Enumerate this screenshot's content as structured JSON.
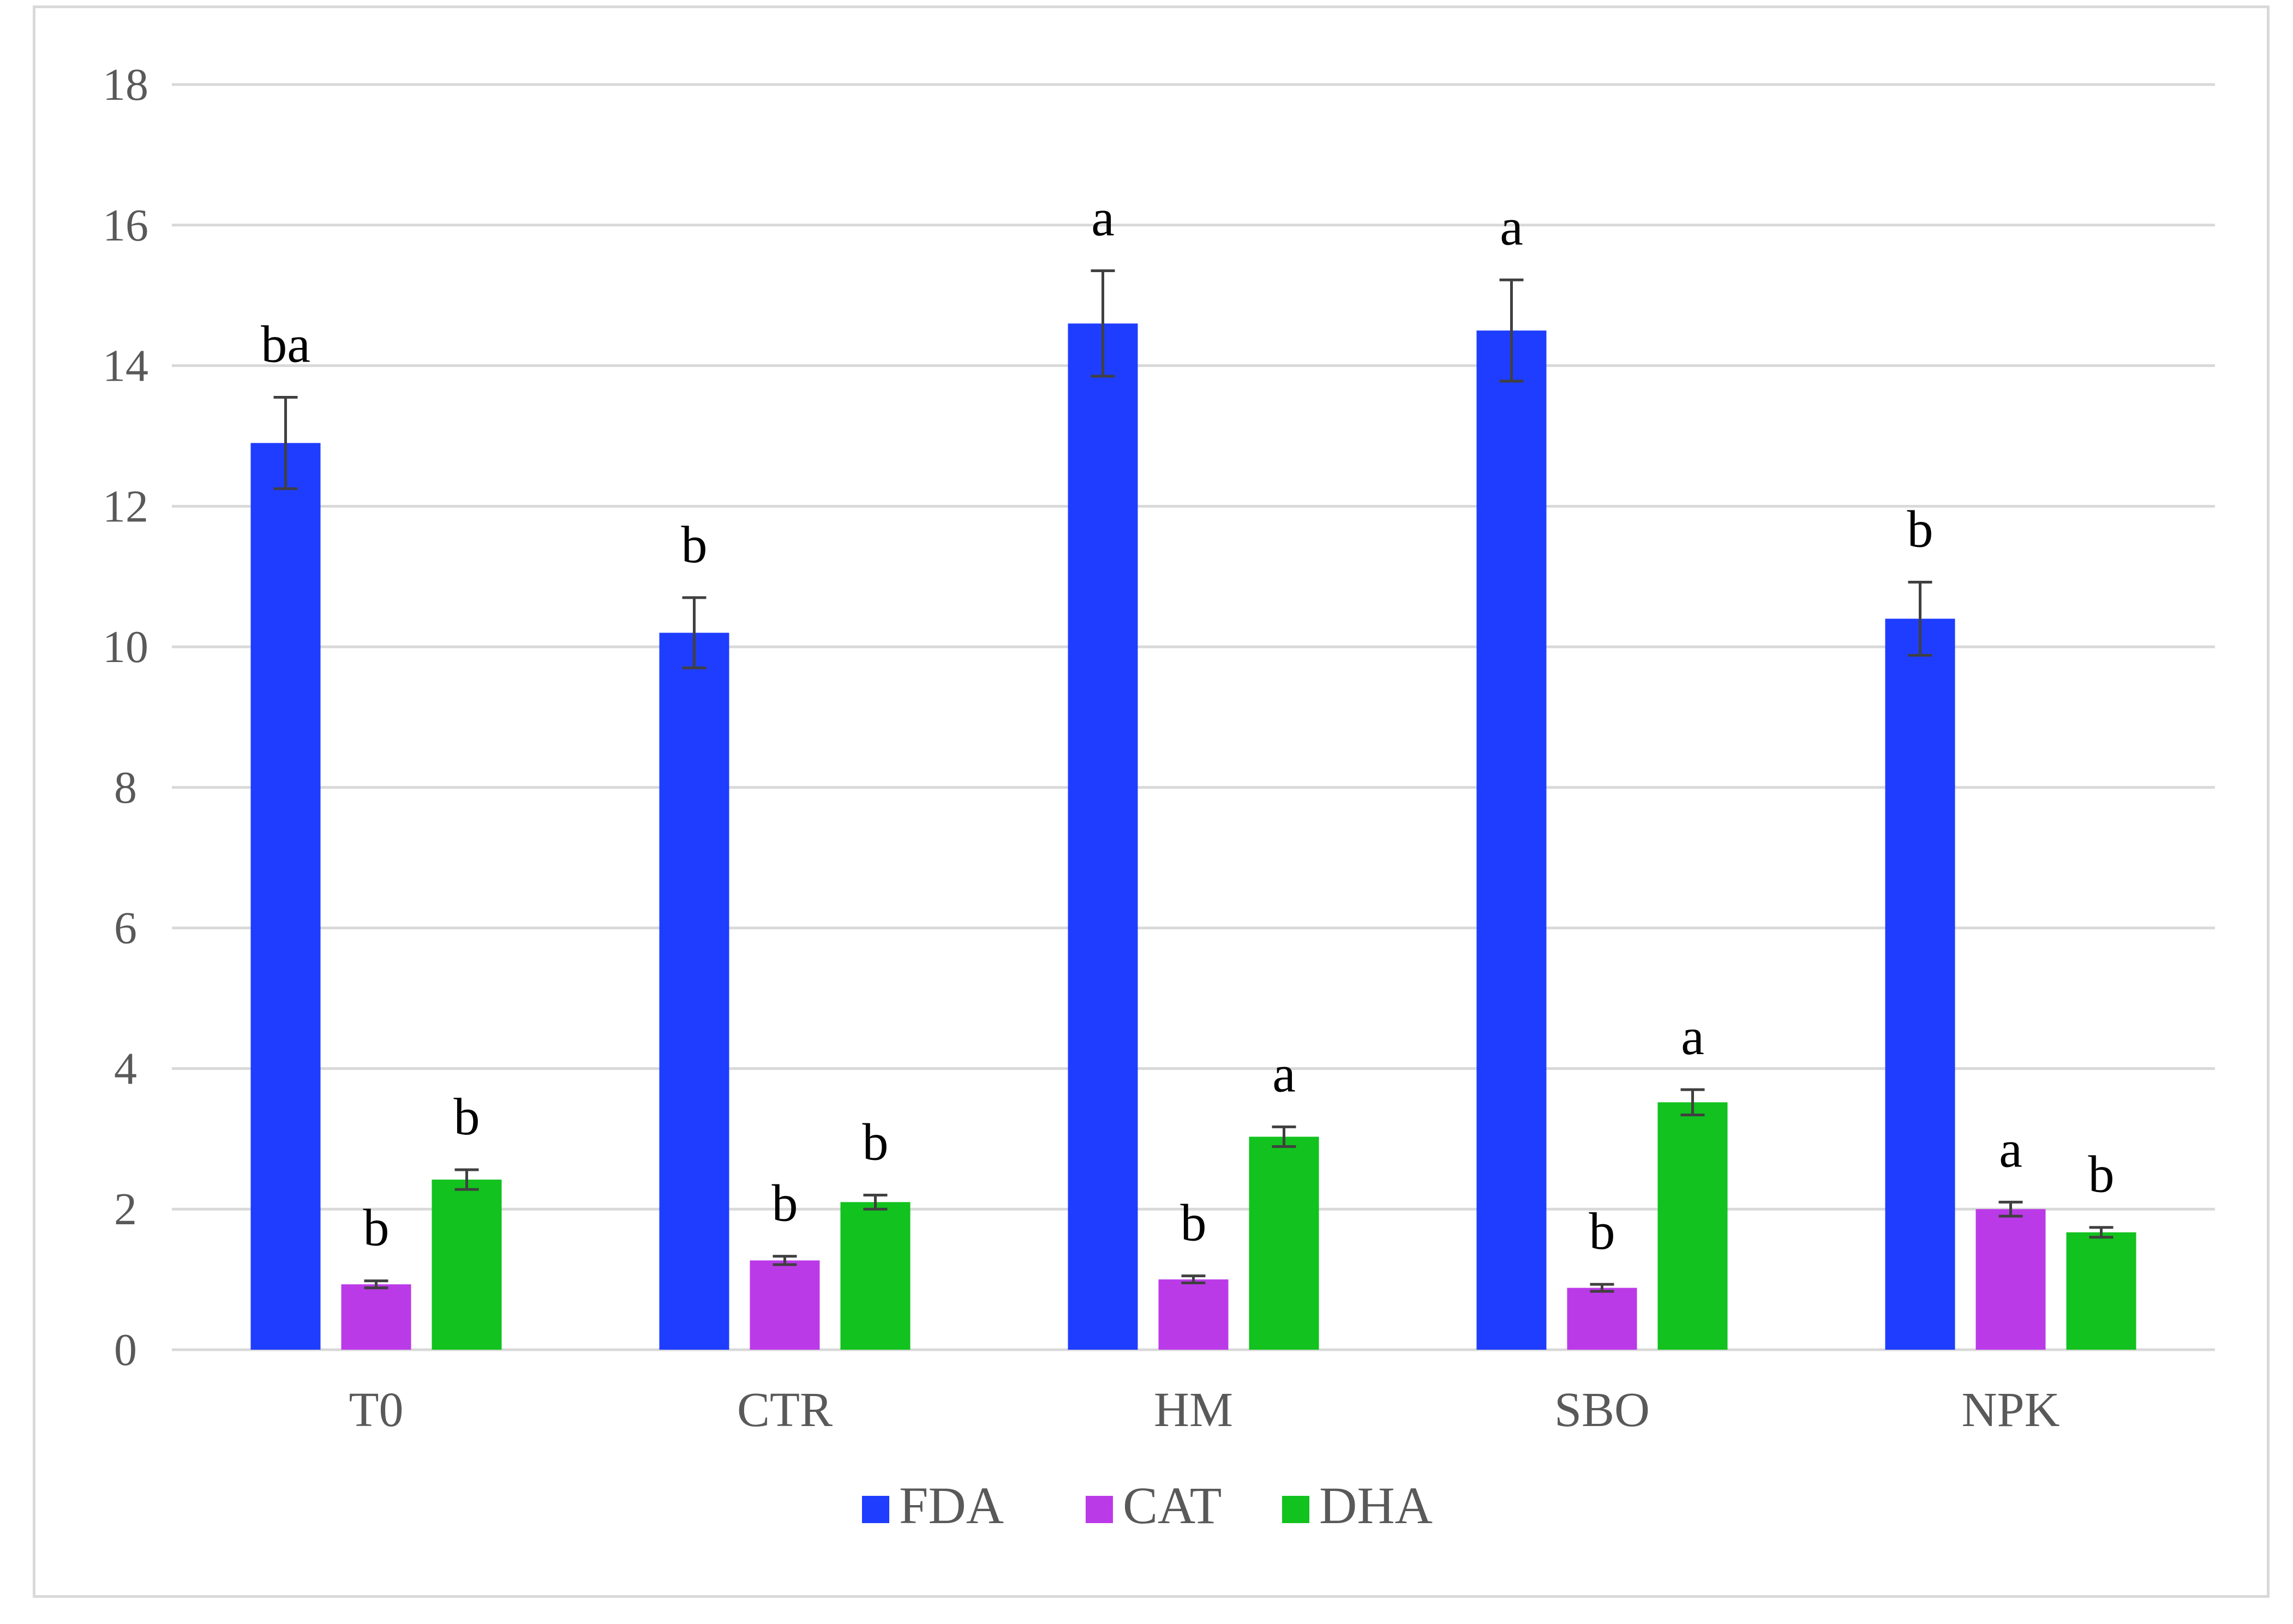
{
  "chart_data": {
    "type": "bar",
    "categories": [
      "T0",
      "CTR",
      "HM",
      "SBO",
      "NPK"
    ],
    "ylim": [
      0,
      18
    ],
    "yticks": [
      0,
      2,
      4,
      6,
      8,
      10,
      12,
      14,
      16,
      18
    ],
    "grid": true,
    "legend_position": "bottom",
    "series": [
      {
        "name": "FDA",
        "color": "#1f3dff",
        "values": [
          12.9,
          10.2,
          14.6,
          14.5,
          10.4
        ],
        "errors": [
          0.65,
          0.5,
          0.75,
          0.72,
          0.52
        ],
        "letters": [
          "ba",
          "b",
          "a",
          "a",
          "b"
        ]
      },
      {
        "name": "CAT",
        "color": "#bb3ae8",
        "values": [
          0.93,
          1.27,
          1.0,
          0.88,
          2.0
        ],
        "errors": [
          0.05,
          0.06,
          0.05,
          0.05,
          0.1
        ],
        "letters": [
          "b",
          "b",
          "b",
          "b",
          "a"
        ]
      },
      {
        "name": "DHA",
        "color": "#12c21e",
        "values": [
          2.42,
          2.1,
          3.03,
          3.52,
          1.67
        ],
        "errors": [
          0.14,
          0.1,
          0.14,
          0.18,
          0.07
        ],
        "letters": [
          "b",
          "b",
          "a",
          "a",
          "b"
        ]
      }
    ]
  }
}
